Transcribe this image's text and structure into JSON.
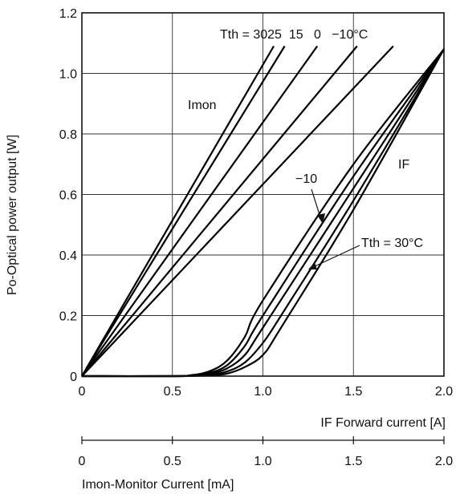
{
  "chart_data": {
    "type": "line",
    "title": "",
    "ylabel": "Po-Optical power output [W]",
    "xlabel": "IF Forward current [A]",
    "x2label": "Imon-Monitor Current [mA]",
    "xlim": [
      0,
      2.0
    ],
    "ylim": [
      0,
      1.2
    ],
    "x_ticks": [
      "0",
      "0.5",
      "1.0",
      "1.5",
      "2.0"
    ],
    "x2_ticks": [
      "0",
      "0.5",
      "1.0",
      "1.5",
      "2.0"
    ],
    "y_ticks": [
      "0",
      "0.2",
      "0.4",
      "0.6",
      "0.8",
      "1.0",
      "1.2"
    ],
    "grid": true,
    "annotations": {
      "imon": "Imon",
      "if": "IF",
      "tth_top": "Tth = 3025  15   0   −10°C",
      "minus10": "−10",
      "tth30": "Tth = 30°C"
    },
    "imon_series": [
      {
        "name": "30",
        "x": [
          0,
          1.06
        ],
        "y": [
          0,
          1.09
        ]
      },
      {
        "name": "25",
        "x": [
          0,
          1.12
        ],
        "y": [
          0,
          1.09
        ]
      },
      {
        "name": "15",
        "x": [
          0,
          1.3
        ],
        "y": [
          0,
          1.09
        ]
      },
      {
        "name": "0",
        "x": [
          0,
          1.52
        ],
        "y": [
          0,
          1.09
        ]
      },
      {
        "name": "-10",
        "x": [
          0,
          1.72
        ],
        "y": [
          0,
          1.09
        ]
      }
    ],
    "if_series": [
      {
        "name": "-10",
        "x": [
          0,
          0.5,
          0.6,
          0.7,
          0.8,
          0.9,
          1.0,
          1.5,
          2.0
        ],
        "y": [
          0,
          0,
          0.003,
          0.015,
          0.05,
          0.13,
          0.25,
          0.7,
          1.08
        ]
      },
      {
        "name": "0",
        "x": [
          0,
          0.5,
          0.6,
          0.7,
          0.8,
          0.9,
          1.0,
          1.5,
          2.0
        ],
        "y": [
          0,
          0,
          0.002,
          0.01,
          0.035,
          0.1,
          0.2,
          0.66,
          1.08
        ]
      },
      {
        "name": "15",
        "x": [
          0,
          0.5,
          0.6,
          0.7,
          0.8,
          0.9,
          1.0,
          1.5,
          2.0
        ],
        "y": [
          0,
          0,
          0.001,
          0.006,
          0.025,
          0.07,
          0.16,
          0.62,
          1.08
        ]
      },
      {
        "name": "25",
        "x": [
          0,
          0.5,
          0.6,
          0.7,
          0.8,
          0.9,
          1.0,
          1.1,
          1.5,
          2.0
        ],
        "y": [
          0,
          0,
          0.001,
          0.004,
          0.015,
          0.045,
          0.11,
          0.2,
          0.58,
          1.08
        ]
      },
      {
        "name": "30",
        "x": [
          0,
          0.5,
          0.6,
          0.7,
          0.8,
          0.9,
          1.0,
          1.1,
          1.5,
          2.0
        ],
        "y": [
          0,
          0,
          0.0005,
          0.002,
          0.008,
          0.03,
          0.07,
          0.16,
          0.55,
          1.08
        ]
      }
    ]
  }
}
